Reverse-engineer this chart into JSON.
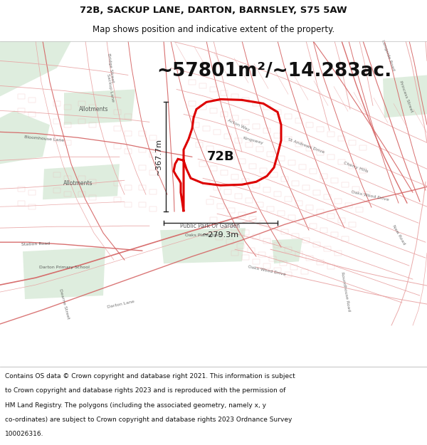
{
  "title_line1": "72B, SACKUP LANE, DARTON, BARNSLEY, S75 5AW",
  "title_line2": "Map shows position and indicative extent of the property.",
  "area_text": "~57801m²/~14.283ac.",
  "label_72b": "72B",
  "dim_vertical": "~367.7m",
  "dim_horizontal": "~279.3m",
  "footer_lines": [
    "Contains OS data © Crown copyright and database right 2021. This information is subject",
    "to Crown copyright and database rights 2023 and is reproduced with the permission of",
    "HM Land Registry. The polygons (including the associated geometry, namely x, y",
    "co-ordinates) are subject to Crown copyright and database rights 2023 Ordnance Survey",
    "100026316."
  ],
  "map_bg": "#f9f7f5",
  "road_color": "#e8a0a0",
  "road_color_dark": "#d46060",
  "green_color": "#d4e8d4",
  "property_edge": "#dd0000",
  "dim_color": "#222222",
  "text_color": "#444444",
  "area_color": "#111111",
  "fig_width": 6.0,
  "fig_height": 6.25,
  "title_fontsize": 9.5,
  "subtitle_fontsize": 8.5,
  "area_fontsize": 19,
  "label_fontsize": 13,
  "dim_fontsize": 8,
  "map_label_fontsize": 5.5,
  "footer_fontsize": 6.5
}
